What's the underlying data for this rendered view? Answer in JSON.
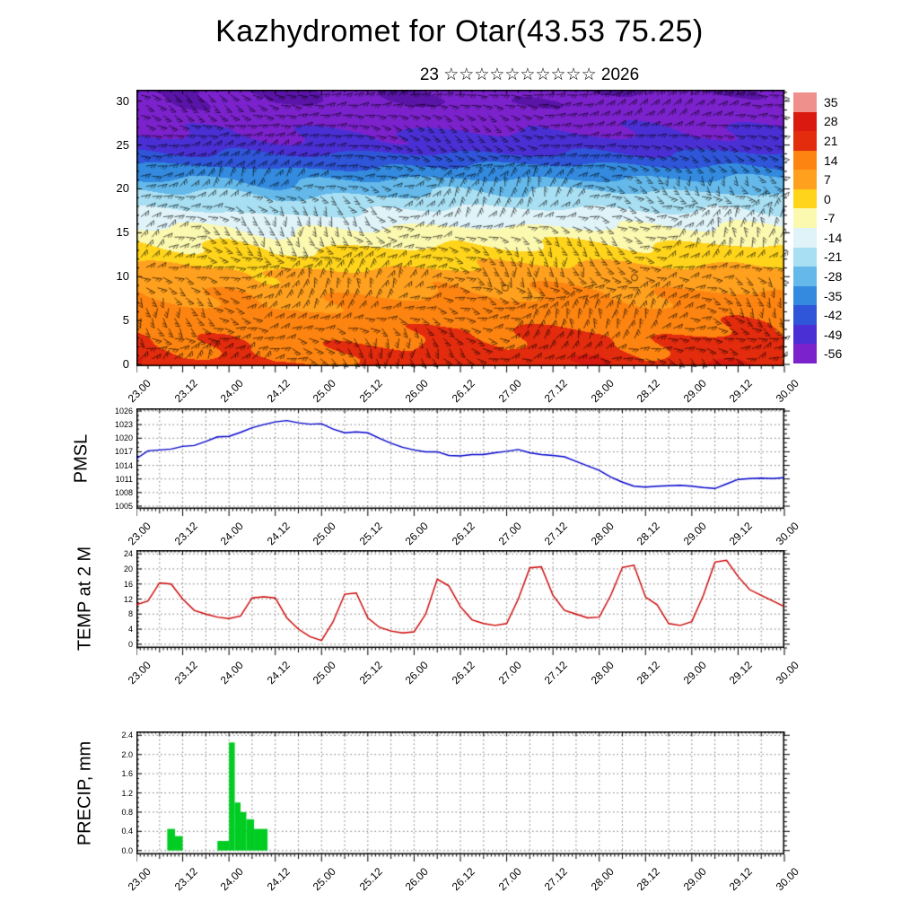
{
  "header": {
    "title": "Kazhydromet for Otar(43.53 75.25)",
    "subtitle": "23 ☆☆☆☆☆☆☆☆☆☆ 2026"
  },
  "axes": {
    "x_ticks": [
      "23.00",
      "23.12",
      "24.00",
      "24.12",
      "25.00",
      "25.12",
      "26.00",
      "26.12",
      "27.00",
      "27.12",
      "28.00",
      "28.12",
      "29.00",
      "29.12",
      "30.00"
    ],
    "x_hours": [
      0,
      12,
      24,
      36,
      48,
      60,
      72,
      84,
      96,
      108,
      120,
      132,
      144,
      156,
      168
    ]
  },
  "chart_data": [
    {
      "type": "heatmap",
      "name": "temperature-wind-time-height-cross-section",
      "x_categories": [
        "23.00",
        "23.12",
        "24.00",
        "24.12",
        "25.00",
        "25.12",
        "26.00",
        "26.12",
        "27.00",
        "27.12",
        "28.00",
        "28.12",
        "29.00",
        "29.12",
        "30.00"
      ],
      "levels": [
        0,
        5,
        10,
        15,
        20,
        25,
        30
      ],
      "ylim": [
        -0.2,
        31.3
      ],
      "y_ticks": [
        0,
        5,
        10,
        15,
        20,
        25,
        30
      ],
      "overlay": "wind-barbs",
      "grid_by_level": [
        [
          24,
          18,
          20,
          16,
          18,
          18,
          20,
          24,
          20,
          26,
          24,
          18,
          22,
          26,
          20
        ],
        [
          16,
          14,
          15,
          12,
          14,
          14,
          15,
          16,
          15,
          17,
          16,
          14,
          15,
          17,
          15
        ],
        [
          7,
          6,
          7,
          4,
          6,
          6,
          7,
          8,
          7,
          8,
          8,
          7,
          7,
          8,
          7
        ],
        [
          -7,
          -8,
          -7,
          -11,
          -9,
          -9,
          -8,
          -7,
          -8,
          -7,
          -7,
          -8,
          -8,
          -7,
          -9
        ],
        [
          -25,
          -26,
          -25,
          -30,
          -27,
          -27,
          -26,
          -25,
          -26,
          -25,
          -25,
          -26,
          -26,
          -25,
          -27
        ],
        [
          -49,
          -50,
          -49,
          -51,
          -50,
          -50,
          -50,
          -49,
          -50,
          -49,
          -49,
          -50,
          -50,
          -49,
          -50
        ],
        [
          -58,
          -60,
          -58,
          -61,
          -59,
          -58,
          -60,
          -58,
          -58,
          -59,
          -60,
          -58,
          -59,
          -58,
          -58
        ]
      ],
      "colorscale": {
        "labels": [
          35,
          28,
          21,
          14,
          7,
          0,
          -7,
          -14,
          -21,
          -28,
          -35,
          -42,
          -49,
          -56
        ],
        "colors": [
          "#f0908c",
          "#da1a10",
          "#e32b0e",
          "#fd8410",
          "#ffa01e",
          "#ffd41b",
          "#fbf8b0",
          "#dff3f8",
          "#a8dff2",
          "#64b9ea",
          "#338ade",
          "#2f55d8",
          "#4a30d4",
          "#7b22cc"
        ],
        "below_color": "#5a14a8"
      }
    },
    {
      "type": "line",
      "title": "PMSL",
      "color": "#0000cc",
      "x_step_hours": 3,
      "ylim": [
        1004.4,
        1026.6
      ],
      "y_ticks": [
        1005,
        1008,
        1011,
        1014,
        1017,
        1020,
        1023,
        1026
      ],
      "y_minor": 1,
      "values": [
        1015.5,
        1017.2,
        1017.4,
        1017.6,
        1018.2,
        1018.4,
        1019.3,
        1020.3,
        1020.4,
        1021.3,
        1022.3,
        1023.0,
        1023.6,
        1023.9,
        1023.4,
        1023.1,
        1023.2,
        1022.0,
        1021.2,
        1021.4,
        1021.2,
        1020.0,
        1018.9,
        1018.0,
        1017.4,
        1017.0,
        1017.0,
        1016.2,
        1016.1,
        1016.4,
        1016.4,
        1016.8,
        1017.1,
        1017.5,
        1016.8,
        1016.4,
        1016.2,
        1015.9,
        1014.9,
        1013.9,
        1012.9,
        1011.4,
        1010.3,
        1009.4,
        1009.2,
        1009.4,
        1009.5,
        1009.6,
        1009.4,
        1009.1,
        1008.9,
        1009.9,
        1010.9,
        1011.1,
        1011.2,
        1011.1,
        1011.3
      ]
    },
    {
      "type": "line",
      "title": "TEMP at 2 M",
      "color": "#cc0000",
      "x_step_hours": 3,
      "ylim": [
        -1,
        25
      ],
      "y_ticks": [
        0,
        4,
        8,
        12,
        16,
        20,
        24
      ],
      "y_minor": 1,
      "values": [
        10.5,
        11.5,
        16.3,
        16.0,
        12.0,
        9.0,
        8.0,
        7.2,
        6.8,
        7.5,
        12.3,
        12.6,
        12.3,
        7.0,
        4.0,
        2.0,
        1.0,
        6.0,
        13.3,
        13.6,
        7.0,
        4.5,
        3.5,
        3.0,
        3.3,
        8.0,
        17.3,
        15.5,
        10.0,
        6.5,
        5.5,
        5.0,
        5.5,
        12.0,
        20.3,
        20.6,
        13.0,
        9.0,
        8.0,
        7.0,
        7.2,
        13.0,
        20.4,
        21.0,
        12.5,
        10.5,
        5.5,
        5.0,
        6.0,
        13.0,
        21.8,
        22.3,
        18.0,
        14.5,
        13.0,
        11.5,
        10.0
      ]
    },
    {
      "type": "bar",
      "title": "PRECIP, mm",
      "color": "#00cc22",
      "ylim": [
        -0.08,
        2.48
      ],
      "y_ticks": [
        0,
        0.4,
        0.8,
        1.2,
        1.6,
        2.0,
        2.4
      ],
      "y_tick_labels": [
        "0.0",
        "0.4",
        "0.8",
        "1.2",
        "1.6",
        "2.0",
        "2.4"
      ],
      "y_minor": 0.1,
      "bars": [
        {
          "t": 8,
          "w": 2,
          "v": 0.45
        },
        {
          "t": 10,
          "w": 2,
          "v": 0.3
        },
        {
          "t": 21,
          "w": 3,
          "v": 0.2
        },
        {
          "t": 24,
          "w": 1.5,
          "v": 2.25
        },
        {
          "t": 25.5,
          "w": 1.5,
          "v": 1.0
        },
        {
          "t": 27,
          "w": 1.5,
          "v": 0.8
        },
        {
          "t": 28.5,
          "w": 2,
          "v": 0.65
        },
        {
          "t": 30.5,
          "w": 3.5,
          "v": 0.45
        }
      ]
    }
  ]
}
